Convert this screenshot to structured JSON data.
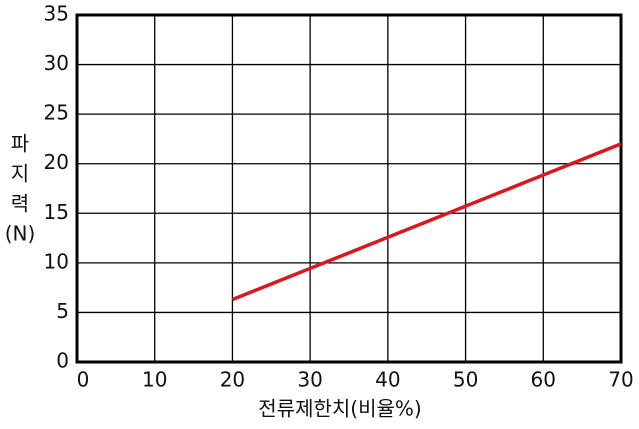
{
  "chart_data": {
    "type": "line",
    "xlabel": "전류제한치(비율%)",
    "ylabel": [
      "파",
      "지",
      "력",
      "(N)"
    ],
    "x": [
      20,
      70
    ],
    "series": [
      {
        "color": "#e0151b",
        "values": [
          6.3,
          22
        ]
      }
    ],
    "xlim": [
      0,
      70
    ],
    "xticks": [
      0,
      10,
      20,
      30,
      40,
      50,
      60,
      70
    ],
    "ylim": [
      0,
      35
    ],
    "yticks": [
      0,
      5,
      10,
      15,
      20,
      25,
      30,
      35
    ],
    "grid": true
  }
}
